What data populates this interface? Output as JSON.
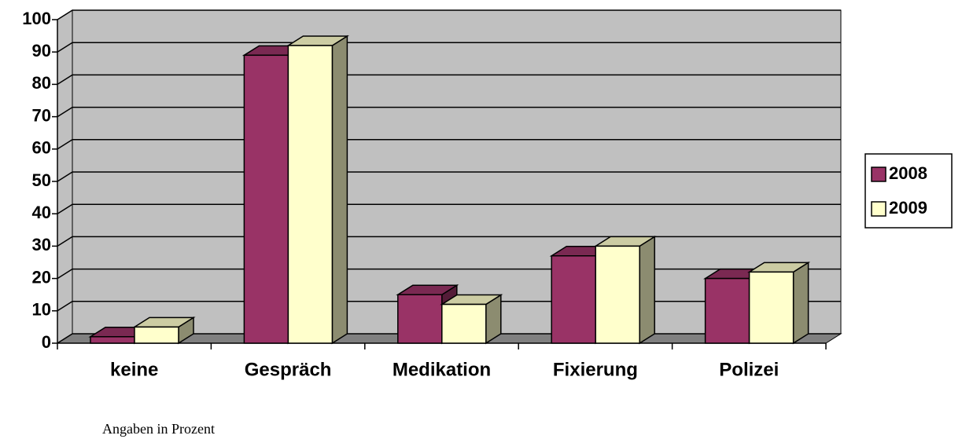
{
  "chart_data": {
    "type": "bar3d",
    "categories": [
      "keine",
      "Gespräch",
      "Medikation",
      "Fixierung",
      "Polizei"
    ],
    "series": [
      {
        "name": "2008",
        "color": "#993366",
        "values": [
          2,
          89,
          15,
          27,
          20
        ]
      },
      {
        "name": "2009",
        "color": "#ffffcc",
        "values": [
          5,
          92,
          12,
          30,
          22
        ]
      }
    ],
    "ylim": [
      0,
      100
    ],
    "yticks": [
      0,
      10,
      20,
      30,
      40,
      50,
      60,
      70,
      80,
      90,
      100
    ],
    "grid": true,
    "legend": "right",
    "wall_color": "#c0c0c0",
    "floor_color": "#808080",
    "note": "Angaben in Prozent"
  }
}
